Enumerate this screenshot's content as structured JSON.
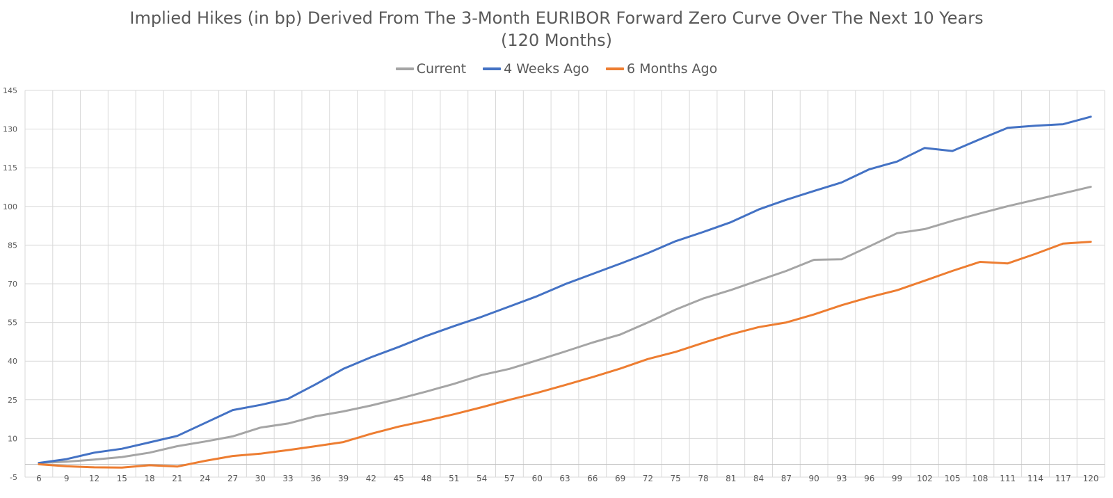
{
  "chart_data": {
    "type": "line",
    "title": "Implied Hikes (in bp) Derived From The 3-Month EURIBOR Forward Zero Curve Over The Next 10 Years (120 Months)",
    "xlabel": "",
    "ylabel": "",
    "x": [
      6,
      9,
      12,
      15,
      18,
      21,
      24,
      27,
      30,
      33,
      36,
      39,
      42,
      45,
      48,
      51,
      54,
      57,
      60,
      63,
      66,
      69,
      72,
      75,
      78,
      81,
      84,
      87,
      90,
      93,
      96,
      99,
      102,
      105,
      108,
      111,
      114,
      117,
      120
    ],
    "ylim": [
      -5,
      145
    ],
    "yticks": [
      -5,
      10,
      25,
      40,
      55,
      70,
      85,
      100,
      115,
      130,
      145
    ],
    "grid": true,
    "legend_position": "top-center",
    "series": [
      {
        "name": "Current",
        "color": "#A5A5A5",
        "values": [
          0.5,
          1,
          1.8,
          2.8,
          4.5,
          7,
          8.8,
          10.8,
          14.2,
          15.8,
          18.6,
          20.5,
          22.8,
          25.4,
          28.2,
          31.2,
          34.6,
          37,
          40.3,
          43.7,
          47.2,
          50.3,
          55,
          60,
          64.3,
          67.6,
          71.3,
          75,
          79.3,
          79.5,
          84.5,
          89.6,
          91.2,
          94.4,
          97.3,
          100.1,
          102.6,
          105.1,
          107.6
        ]
      },
      {
        "name": "4 Weeks Ago",
        "color": "#4472C4",
        "values": [
          0.5,
          2,
          4.5,
          6,
          8.5,
          11,
          16,
          21,
          23,
          25.4,
          31,
          37,
          41.5,
          45.5,
          49.8,
          53.6,
          57.2,
          61.2,
          65.2,
          69.8,
          73.8,
          77.8,
          81.9,
          86.5,
          90.1,
          93.9,
          98.8,
          102.6,
          106,
          109.3,
          114.4,
          117.4,
          122.7,
          121.5,
          126.1,
          130.5,
          131.3,
          131.9,
          134.8
        ]
      },
      {
        "name": "6 Months Ago",
        "color": "#ED7D31",
        "values": [
          0,
          -0.8,
          -1.2,
          -1.3,
          -0.4,
          -0.9,
          1.3,
          3.2,
          4.1,
          5.5,
          7,
          8.6,
          11.8,
          14.6,
          16.9,
          19.4,
          22.1,
          25,
          27.7,
          30.7,
          33.8,
          37.1,
          40.8,
          43.6,
          47.1,
          50.4,
          53.2,
          55,
          58.1,
          61.7,
          64.8,
          67.5,
          71.2,
          75,
          78.5,
          77.9,
          81.6,
          85.6,
          86.3
        ]
      }
    ]
  }
}
